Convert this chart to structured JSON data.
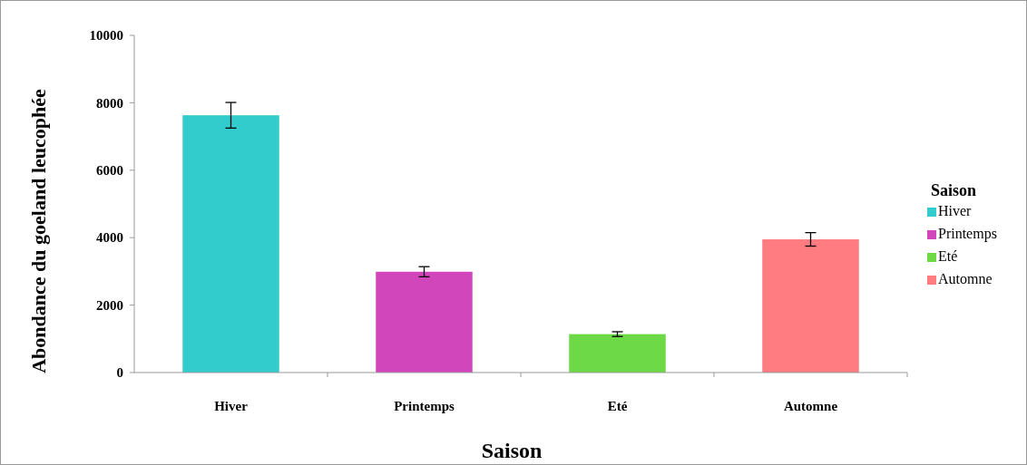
{
  "chart_data": {
    "type": "bar",
    "xlabel": "Saison",
    "ylabel": "Abondance du goeland leucophée",
    "legend_title": "Saison",
    "categories": [
      "Hiver",
      "Printemps",
      "Eté",
      "Automne"
    ],
    "series": [
      {
        "name": "Hiver",
        "color": "#33cccc",
        "values": [
          7630,
          null,
          null,
          null
        ],
        "errors": [
          380,
          null,
          null,
          null
        ]
      },
      {
        "name": "Printemps",
        "color": "#d147bb",
        "values": [
          null,
          2990,
          null,
          null
        ],
        "errors": [
          null,
          150,
          null,
          null
        ]
      },
      {
        "name": "Eté",
        "color": "#6ed947",
        "values": [
          null,
          null,
          1140,
          null
        ],
        "errors": [
          null,
          null,
          70,
          null
        ]
      },
      {
        "name": "Automne",
        "color": "#ff7c80",
        "values": [
          null,
          null,
          null,
          3950
        ],
        "errors": [
          null,
          null,
          null,
          200
        ]
      }
    ],
    "ylim": [
      0,
      10000
    ],
    "yticks": [
      0,
      2000,
      4000,
      6000,
      8000,
      10000
    ],
    "legend": "right"
  }
}
